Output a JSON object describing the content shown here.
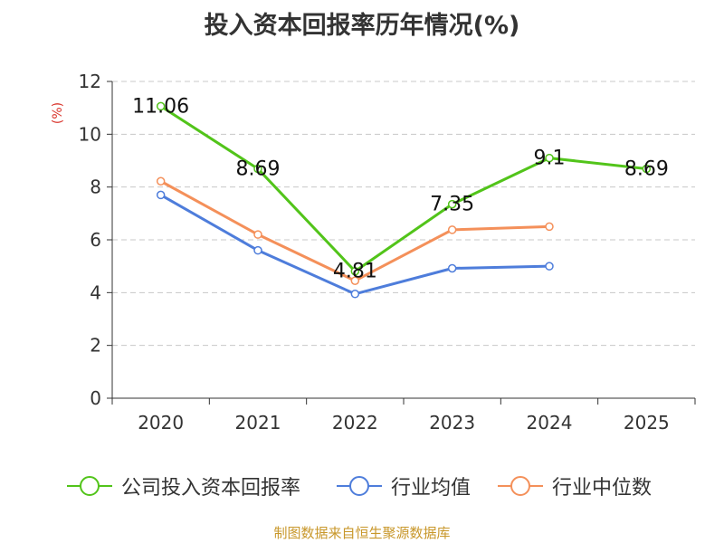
{
  "title": "投入资本回报率历年情况(%)",
  "source": "制图数据来自恒生聚源数据库",
  "chart_data": {
    "type": "line",
    "title": "投入资本回报率历年情况(%)",
    "ylabel": "(%)",
    "xlabel": "",
    "ylim": [
      0,
      12
    ],
    "yticks": [
      "0",
      "2",
      "4",
      "6",
      "8",
      "10",
      "12"
    ],
    "categories": [
      "2020",
      "2021",
      "2022",
      "2023",
      "2024",
      "2025"
    ],
    "grid": true,
    "legend_position": "bottom",
    "series": [
      {
        "name": "公司投入资本回报率",
        "color": "#52c41a",
        "values": [
          11.06,
          8.69,
          4.81,
          7.35,
          9.1,
          8.69
        ],
        "labels": [
          "11.06",
          "8.69",
          "4.81",
          "7.35",
          "9.1",
          "8.69"
        ]
      },
      {
        "name": "行业均值",
        "color": "#4e7ddb",
        "values": [
          7.7,
          5.6,
          3.95,
          4.92,
          5.0,
          null
        ]
      },
      {
        "name": "行业中位数",
        "color": "#f4905a",
        "values": [
          8.22,
          6.2,
          4.45,
          6.38,
          6.5,
          null
        ]
      }
    ]
  }
}
